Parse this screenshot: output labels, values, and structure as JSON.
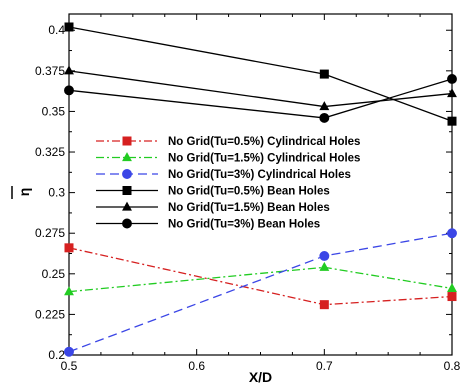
{
  "chart_data": {
    "type": "line",
    "title": "",
    "xlabel": "X/D",
    "ylabel": "η",
    "ylabel_overbar": true,
    "xlim": [
      0.5,
      0.8
    ],
    "ylim": [
      0.2,
      0.41
    ],
    "xticks": [
      "0.5",
      "0.6",
      "0.7",
      "0.8"
    ],
    "yticks": [
      "0.2",
      "0.225",
      "0.25",
      "0.275",
      "0.3",
      "0.325",
      "0.35",
      "0.375",
      "0.4"
    ],
    "legend_position": "center-left",
    "grid": false,
    "x": [
      0.5,
      0.7,
      0.8
    ],
    "series": [
      {
        "name": "No Grid(Tu=0.5%) Cylindrical Holes",
        "values": [
          0.266,
          0.231,
          0.236
        ],
        "color": "#d62020",
        "dash": "dashdot",
        "marker": "square"
      },
      {
        "name": "No Grid(Tu=1.5%) Cylindrical Holes",
        "values": [
          0.239,
          0.254,
          0.241
        ],
        "color": "#22cc22",
        "dash": "dashdot",
        "marker": "triangle"
      },
      {
        "name": "No Grid(Tu=3%) Cylindrical Holes",
        "values": [
          0.202,
          0.261,
          0.275
        ],
        "color": "#3b46e6",
        "dash": "dashed",
        "marker": "circle"
      },
      {
        "name": "No Grid(Tu=0.5%) Bean Holes",
        "values": [
          0.402,
          0.373,
          0.344
        ],
        "color": "#000000",
        "dash": "solid",
        "marker": "square"
      },
      {
        "name": "No Grid(Tu=1.5%) Bean Holes",
        "values": [
          0.375,
          0.353,
          0.361
        ],
        "color": "#000000",
        "dash": "solid",
        "marker": "triangle"
      },
      {
        "name": "No Grid(Tu=3%) Bean Holes",
        "values": [
          0.363,
          0.346,
          0.37
        ],
        "color": "#000000",
        "dash": "solid",
        "marker": "circle"
      }
    ]
  }
}
